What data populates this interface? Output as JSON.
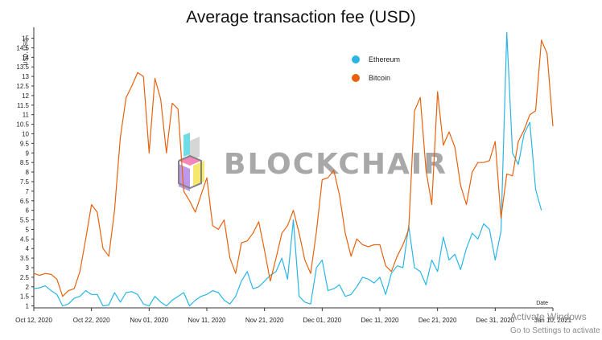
{
  "chart_data": {
    "type": "line",
    "title": "Average transaction fee (USD)",
    "ylabel": "USD, USD",
    "xlabel": "Date",
    "ylim": [
      0.9,
      15.4
    ],
    "yticks": [
      1,
      1.5,
      2,
      2.5,
      3,
      3.5,
      4,
      4.5,
      5,
      5.5,
      6,
      6.5,
      7,
      7.5,
      8,
      8.5,
      9,
      9.5,
      10,
      10.5,
      11,
      11.5,
      12,
      12.5,
      13,
      13.5,
      14,
      14.5,
      15
    ],
    "xticks": [
      {
        "label": "Oct 12, 2020",
        "day": 0
      },
      {
        "label": "Oct 22, 2020",
        "day": 10
      },
      {
        "label": "Nov 01, 2020",
        "day": 20
      },
      {
        "label": "Nov 11, 2020",
        "day": 30
      },
      {
        "label": "Nov 21, 2020",
        "day": 40
      },
      {
        "label": "Dec 01, 2020",
        "day": 50
      },
      {
        "label": "Dec 11, 2020",
        "day": 60
      },
      {
        "label": "Dec 21, 2020",
        "day": 70
      },
      {
        "label": "Dec 31, 2020",
        "day": 80
      },
      {
        "label": "Jan 10, 2021",
        "day": 90
      }
    ],
    "legend_position": "top-right",
    "grid": false,
    "series": [
      {
        "name": "Ethereum",
        "color": "#29b6e6",
        "values": [
          1.9,
          1.95,
          2.05,
          1.8,
          1.6,
          1.0,
          1.1,
          1.4,
          1.5,
          1.8,
          1.6,
          1.6,
          1.0,
          1.05,
          1.7,
          1.2,
          1.7,
          1.75,
          1.6,
          1.1,
          1.0,
          1.5,
          1.2,
          1.0,
          1.3,
          1.5,
          1.7,
          1.0,
          1.3,
          1.5,
          1.6,
          1.8,
          1.7,
          1.3,
          1.1,
          1.5,
          2.3,
          2.8,
          1.9,
          2.0,
          2.3,
          2.6,
          2.8,
          3.5,
          2.4,
          5.5,
          1.5,
          1.2,
          1.1,
          3.0,
          3.4,
          1.8,
          1.9,
          2.1,
          1.5,
          1.6,
          2.0,
          2.5,
          2.4,
          2.2,
          2.5,
          1.6,
          2.7,
          3.1,
          3.0,
          5.2,
          3.0,
          2.8,
          2.1,
          3.4,
          2.8,
          4.6,
          3.4,
          3.7,
          2.9,
          4.0,
          4.8,
          4.5,
          5.3,
          5.0,
          3.4,
          4.9,
          15.3,
          9.0,
          8.4,
          10.0,
          10.6,
          7.1,
          6.0
        ],
        "data_start_day": 0
      },
      {
        "name": "Bitcoin",
        "color": "#e8620e",
        "values": [
          2.7,
          2.6,
          2.7,
          2.65,
          2.4,
          1.5,
          1.8,
          1.9,
          2.8,
          4.5,
          6.3,
          5.9,
          4.0,
          3.6,
          6.0,
          9.8,
          11.9,
          12.5,
          13.2,
          13.0,
          9.0,
          12.9,
          11.8,
          9.0,
          11.6,
          11.3,
          7.0,
          6.5,
          5.9,
          6.8,
          7.7,
          5.2,
          5.0,
          5.5,
          3.5,
          2.7,
          4.3,
          4.4,
          4.8,
          5.4,
          3.9,
          2.3,
          3.5,
          4.8,
          5.2,
          6.0,
          4.8,
          3.4,
          2.7,
          4.9,
          7.6,
          7.7,
          8.1,
          6.8,
          4.8,
          3.6,
          4.5,
          4.2,
          4.1,
          4.2,
          4.2,
          3.1,
          2.8,
          3.6,
          4.2,
          5.0,
          11.2,
          11.9,
          8.1,
          6.3,
          12.2,
          9.4,
          10.1,
          9.3,
          7.3,
          6.3,
          8.0,
          8.5,
          8.5,
          8.6,
          9.6,
          5.6,
          7.9,
          7.8,
          9.6,
          10.2,
          11.0,
          11.2,
          14.9,
          14.2,
          10.4
        ],
        "data_start_day": 0
      }
    ]
  },
  "watermark": {
    "text": "BLOCKCHAIR",
    "cube_colors": [
      "#c9c9c9",
      "#3fd1e0",
      "#f05fa3",
      "#f2e13b",
      "#a978e3"
    ]
  },
  "os_overlay": {
    "line1": "Activate Windows",
    "line2": "Go to Settings to activate Windows."
  }
}
